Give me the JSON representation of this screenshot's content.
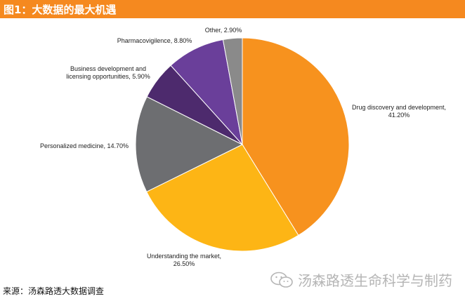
{
  "header": {
    "title": "图1：大数据的最大机遇"
  },
  "chart_data": {
    "type": "pie",
    "title": "",
    "slices": [
      {
        "label": "Drug discovery and development,",
        "value_label": "41.20%",
        "value": 41.2,
        "color": "#f7921e"
      },
      {
        "label": "Understanding the market,",
        "value_label": "26.50%",
        "value": 26.5,
        "color": "#fdb515"
      },
      {
        "label": "Personalized medicine, 14.70%",
        "value_label": "",
        "value": 14.7,
        "color": "#6d6e71"
      },
      {
        "label": "Business development and",
        "value_label": "licensing opportunities, 5.90%",
        "value": 5.9,
        "color": "#4d2a6d"
      },
      {
        "label": "Pharmacovigilence, 8.80%",
        "value_label": "",
        "value": 8.8,
        "color": "#6a3f9a"
      },
      {
        "label": "Other, 2.90%",
        "value_label": "",
        "value": 2.9,
        "color": "#8a8a8a"
      }
    ]
  },
  "footer": {
    "source": "来源：汤森路透大数据调查"
  },
  "watermark": {
    "text": "汤森路透生命科学与制药",
    "icon": "wechat-icon"
  }
}
